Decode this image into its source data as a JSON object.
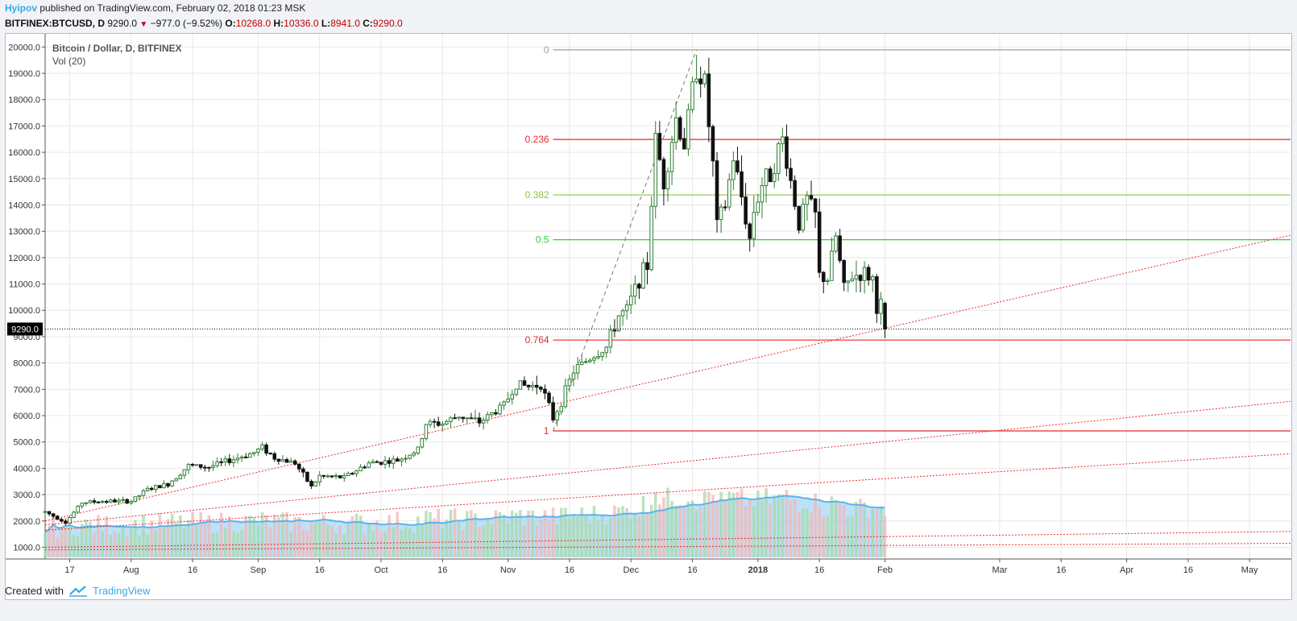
{
  "header": {
    "author": "Hyipov",
    "published_text": "published on TradingView.com, February 02, 2018 01:23 MSK",
    "symbol": "BITFINEX:BTCUSD, D",
    "last": "9290.0",
    "change": "−977.0 (−9.52%)",
    "o_label": "O:",
    "o_value": "10268.0",
    "h_label": "H:",
    "h_value": "10336.0",
    "l_label": "L:",
    "l_value": "8941.0",
    "c_label": "C:",
    "c_value": "9290.0"
  },
  "legend": {
    "title": "Bitcoin / Dollar, D, BITFINEX",
    "volume": "Vol (20)"
  },
  "footer": {
    "created_with": "Created with",
    "brand": "TradingView"
  },
  "colors": {
    "up": "#2e7d32",
    "down": "#111111",
    "fib_red": "#e8292b",
    "fib_olive": "#8cc63f",
    "fib_green": "#2ecc40",
    "trend_red": "#e8292b",
    "vol_up": "#a8d8a8",
    "vol_down": "#f4b6b6",
    "vol_ma_fill": "#86c9f2",
    "vol_ma_line": "#5db2ec",
    "accent": "#3ba7e6"
  },
  "chart_data": {
    "type": "candlestick",
    "y_ticks": [
      1000,
      2000,
      3000,
      4000,
      5000,
      6000,
      7000,
      8000,
      9000,
      10000,
      11000,
      12000,
      13000,
      14000,
      15000,
      16000,
      17000,
      18000,
      19000,
      20000
    ],
    "y_tick_labels": [
      "1000.0",
      "2000.0",
      "3000.0",
      "4000.0",
      "5000.0",
      "6000.0",
      "7000.0",
      "8000.0",
      "9000.0",
      "10000.0",
      "11000.0",
      "12000.0",
      "13000.0",
      "14000.0",
      "15000.0",
      "16000.0",
      "17000.0",
      "18000.0",
      "19000.0",
      "20000.0"
    ],
    "ylim": [
      800,
      20500
    ],
    "x_ticks": [
      {
        "date": "2017-07-17",
        "label": "17",
        "bold": false
      },
      {
        "date": "2017-08-01",
        "label": "Aug",
        "bold": false
      },
      {
        "date": "2017-08-16",
        "label": "16",
        "bold": false
      },
      {
        "date": "2017-09-01",
        "label": "Sep",
        "bold": false
      },
      {
        "date": "2017-09-16",
        "label": "16",
        "bold": false
      },
      {
        "date": "2017-10-01",
        "label": "Oct",
        "bold": false
      },
      {
        "date": "2017-10-16",
        "label": "16",
        "bold": false
      },
      {
        "date": "2017-11-01",
        "label": "Nov",
        "bold": false
      },
      {
        "date": "2017-11-16",
        "label": "16",
        "bold": false
      },
      {
        "date": "2017-12-01",
        "label": "Dec",
        "bold": false
      },
      {
        "date": "2017-12-16",
        "label": "16",
        "bold": false
      },
      {
        "date": "2018-01-01",
        "label": "2018",
        "bold": true
      },
      {
        "date": "2018-01-16",
        "label": "16",
        "bold": false
      },
      {
        "date": "2018-02-01",
        "label": "Feb",
        "bold": false
      },
      {
        "date": "2018-03-01",
        "label": "Mar",
        "bold": false
      },
      {
        "date": "2018-03-16",
        "label": "16",
        "bold": false
      },
      {
        "date": "2018-04-01",
        "label": "Apr",
        "bold": false
      },
      {
        "date": "2018-04-16",
        "label": "16",
        "bold": false
      },
      {
        "date": "2018-05-01",
        "label": "May",
        "bold": false
      }
    ],
    "x_range": [
      "2017-07-11",
      "2018-05-11"
    ],
    "last_price": 9290.0,
    "last_price_label": "9290.0",
    "price_anchors": [
      [
        "2017-07-11",
        2350
      ],
      [
        "2017-07-16",
        1950
      ],
      [
        "2017-07-20",
        2700
      ],
      [
        "2017-07-25",
        2750
      ],
      [
        "2017-08-01",
        2750
      ],
      [
        "2017-08-05",
        3200
      ],
      [
        "2017-08-10",
        3400
      ],
      [
        "2017-08-15",
        4100
      ],
      [
        "2017-08-20",
        4050
      ],
      [
        "2017-08-25",
        4300
      ],
      [
        "2017-08-31",
        4600
      ],
      [
        "2017-09-02",
        4800
      ],
      [
        "2017-09-05",
        4400
      ],
      [
        "2017-09-10",
        4200
      ],
      [
        "2017-09-14",
        3300
      ],
      [
        "2017-09-16",
        3700
      ],
      [
        "2017-09-22",
        3650
      ],
      [
        "2017-09-28",
        4200
      ],
      [
        "2017-10-05",
        4300
      ],
      [
        "2017-10-10",
        4700
      ],
      [
        "2017-10-12",
        5700
      ],
      [
        "2017-10-16",
        5700
      ],
      [
        "2017-10-20",
        6000
      ],
      [
        "2017-10-25",
        5750
      ],
      [
        "2017-10-31",
        6400
      ],
      [
        "2017-11-03",
        7200
      ],
      [
        "2017-11-06",
        7100
      ],
      [
        "2017-11-09",
        7200
      ],
      [
        "2017-11-12",
        5900
      ],
      [
        "2017-11-14",
        6550
      ],
      [
        "2017-11-17",
        7700
      ],
      [
        "2017-11-21",
        8200
      ],
      [
        "2017-11-25",
        8600
      ],
      [
        "2017-11-28",
        9800
      ],
      [
        "2017-11-30",
        10000
      ],
      [
        "2017-12-03",
        11200
      ],
      [
        "2017-12-05",
        11700
      ],
      [
        "2017-12-07",
        16500
      ],
      [
        "2017-12-09",
        14900
      ],
      [
        "2017-12-12",
        17300
      ],
      [
        "2017-12-14",
        16300
      ],
      [
        "2017-12-17",
        19300
      ],
      [
        "2017-12-19",
        18600
      ],
      [
        "2017-12-21",
        15500
      ],
      [
        "2017-12-22",
        13200
      ],
      [
        "2017-12-24",
        14000
      ],
      [
        "2017-12-26",
        15800
      ],
      [
        "2017-12-28",
        14300
      ],
      [
        "2017-12-30",
        12700
      ],
      [
        "2017-12-31",
        13800
      ],
      [
        "2018-01-02",
        14800
      ],
      [
        "2018-01-04",
        15200
      ],
      [
        "2018-01-07",
        16500
      ],
      [
        "2018-01-09",
        14900
      ],
      [
        "2018-01-11",
        13300
      ],
      [
        "2018-01-13",
        14200
      ],
      [
        "2018-01-15",
        13600
      ],
      [
        "2018-01-16",
        11300
      ],
      [
        "2018-01-18",
        11200
      ],
      [
        "2018-01-20",
        12800
      ],
      [
        "2018-01-22",
        10800
      ],
      [
        "2018-01-24",
        11300
      ],
      [
        "2018-01-27",
        11400
      ],
      [
        "2018-01-29",
        11200
      ],
      [
        "2018-01-30",
        10100
      ],
      [
        "2018-01-31",
        10268
      ],
      [
        "2018-02-01",
        9290
      ]
    ],
    "volume_axis_max": 3300,
    "fib_levels": [
      {
        "label": "0",
        "value": 19891,
        "color": "#9e9e9e"
      },
      {
        "label": "0.236",
        "value": 16490,
        "color": "#e8292b"
      },
      {
        "label": "0.382",
        "value": 14380,
        "color": "#8cc63f"
      },
      {
        "label": "0.5",
        "value": 12680,
        "color": "#2ecc40"
      },
      {
        "label": "0.764",
        "value": 8870,
        "color": "#e8292b"
      },
      {
        "label": "1",
        "value": 5420,
        "color": "#e8292b"
      }
    ],
    "fib_start_date": "2017-11-12",
    "fib_range": {
      "from": [
        "2017-11-12",
        5420
      ],
      "to": [
        "2017-12-17",
        19891
      ]
    },
    "trend_lines": [
      {
        "from": [
          "2017-07-11",
          2000
        ],
        "to": [
          "2018-05-11",
          12850
        ]
      },
      {
        "from": [
          "2017-07-11",
          1850
        ],
        "to": [
          "2018-05-11",
          6540
        ]
      },
      {
        "from": [
          "2017-07-11",
          1650
        ],
        "to": [
          "2018-05-11",
          4550
        ]
      },
      {
        "from": [
          "2017-07-11",
          1000
        ],
        "to": [
          "2018-05-11",
          1600
        ]
      },
      {
        "from": [
          "2017-07-11",
          900
        ],
        "to": [
          "2018-05-11",
          1150
        ]
      }
    ]
  }
}
